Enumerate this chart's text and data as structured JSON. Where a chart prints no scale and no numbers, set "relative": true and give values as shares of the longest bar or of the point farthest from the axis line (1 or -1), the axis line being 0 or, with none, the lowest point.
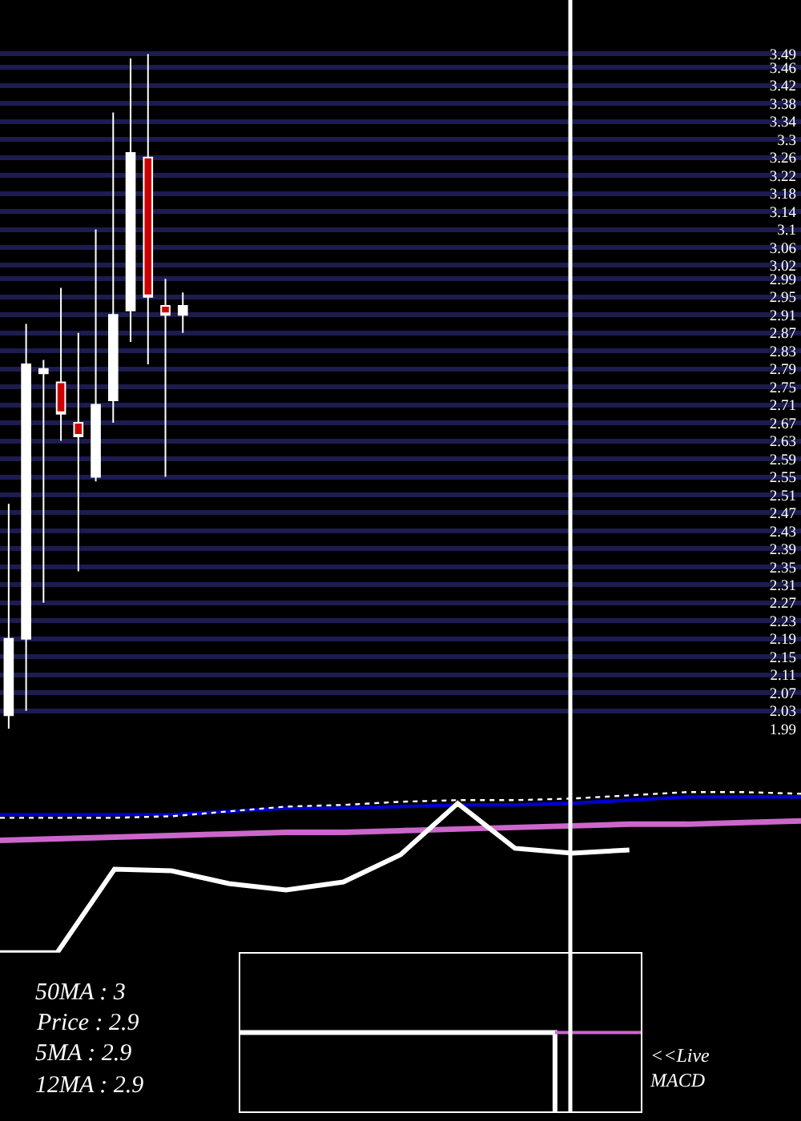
{
  "chart_data": [
    {
      "type": "candlestick",
      "categories": [
        null,
        null,
        null,
        null,
        null,
        null,
        null,
        null,
        null,
        null,
        null,
        null,
        null,
        null,
        null,
        null,
        null,
        null,
        null,
        null,
        null,
        null,
        null,
        null,
        null,
        null,
        null,
        null,
        null,
        null,
        null,
        null,
        null,
        null,
        null,
        null,
        null,
        null,
        null,
        null,
        null,
        null,
        null,
        null,
        null,
        null
      ],
      "ohlc": [
        [
          2.02,
          2.49,
          1.99,
          2.19
        ],
        [
          2.19,
          2.89,
          2.03,
          2.8
        ],
        [
          2.78,
          2.81,
          2.27,
          2.79
        ],
        [
          2.76,
          2.97,
          2.63,
          2.69
        ],
        [
          2.67,
          2.87,
          2.34,
          2.64
        ],
        [
          2.55,
          3.1,
          2.54,
          2.71
        ],
        [
          2.72,
          3.36,
          2.67,
          2.91
        ],
        [
          2.92,
          3.48,
          2.85,
          3.27
        ],
        [
          3.26,
          3.49,
          2.8,
          2.95
        ],
        [
          2.93,
          2.99,
          2.55,
          2.91
        ],
        [
          2.91,
          2.96,
          2.87,
          2.93
        ],
        null,
        null,
        null,
        null,
        null,
        null,
        null,
        null,
        null,
        null,
        null,
        null,
        null,
        null,
        null,
        null,
        null,
        null,
        null,
        null,
        null,
        null,
        null,
        null,
        null,
        null,
        null,
        null,
        null,
        null,
        null,
        null,
        null,
        null,
        null
      ],
      "colors": [
        "#ffffff",
        "#ffffff",
        "#ffffff",
        "#cc0000",
        "#cc0000",
        "#ffffff",
        "#ffffff",
        "#ffffff",
        "#cc0000",
        "#cc0000",
        "#ffffff",
        null,
        null,
        null,
        null,
        null,
        null,
        null,
        null,
        null,
        null,
        null,
        null,
        null,
        null,
        null,
        null,
        null,
        null,
        null,
        null,
        null,
        null,
        null,
        null,
        null,
        null,
        null,
        null,
        null,
        null,
        null,
        null,
        null,
        null,
        null
      ],
      "ylim": [
        1.99,
        3.61
      ],
      "yticks": [
        3.49,
        3.46,
        3.42,
        3.38,
        3.34,
        3.3,
        3.26,
        3.22,
        3.18,
        3.14,
        3.1,
        3.06,
        3.02,
        2.99,
        2.95,
        2.91,
        2.87,
        2.83,
        2.79,
        2.75,
        2.71,
        2.67,
        2.63,
        2.59,
        2.55,
        2.51,
        2.47,
        2.43,
        2.39,
        2.35,
        2.31,
        2.27,
        2.23,
        2.19,
        2.15,
        2.11,
        2.07,
        2.03,
        1.99
      ],
      "grid": "y",
      "tick_labels": "y"
    },
    {
      "type": "line",
      "relative": true,
      "tick_labels": false,
      "categories": [
        null,
        null,
        null,
        null,
        null,
        null,
        null,
        null,
        null,
        null,
        null,
        null,
        null,
        null,
        null
      ],
      "series": [
        {
          "color": "#0000cc",
          "values": [
            0.86,
            0.86,
            0.86,
            0.86,
            0.88,
            0.9,
            0.9,
            0.91,
            0.92,
            0.92,
            0.93,
            0.95,
            0.97,
            0.97,
            0.97
          ]
        },
        {
          "color": "#ffffff",
          "line_style": "dotted",
          "values": [
            0.84,
            0.84,
            0.84,
            0.85,
            0.88,
            0.91,
            0.92,
            0.94,
            0.95,
            0.95,
            0.96,
            0.98,
            1,
            1,
            0.99
          ]
        },
        {
          "color": "#cc66cc",
          "values": [
            0.7,
            0.71,
            0.72,
            0.73,
            0.74,
            0.75,
            0.75,
            0.76,
            0.77,
            0.78,
            0.79,
            0.8,
            0.8,
            0.81,
            0.82
          ]
        },
        {
          "color": "#ffffff",
          "values": [
            0,
            0,
            0.52,
            0.51,
            0.43,
            0.39,
            0.44,
            0.61,
            0.93,
            0.65,
            0.62,
            0.64,
            null,
            null,
            null
          ]
        }
      ],
      "annotations": [
        "50MA : 3",
        "Price : 2.9",
        "5MA : 2.9",
        "12MA : 2.9"
      ]
    },
    {
      "type": "step",
      "relative": true,
      "tick_labels": false,
      "categories": [
        null,
        null,
        null,
        null,
        null,
        null,
        null,
        null,
        null,
        null,
        null,
        null,
        null,
        null,
        null
      ],
      "series": [
        {
          "color": "#ffffff",
          "values": [
            1,
            1,
            1,
            1,
            1,
            1,
            1,
            1,
            1,
            1,
            1,
            0,
            null,
            null,
            null
          ]
        },
        {
          "color": "#cc66cc",
          "values": [
            null,
            null,
            null,
            null,
            null,
            null,
            null,
            null,
            null,
            null,
            null,
            1,
            1,
            1,
            1
          ]
        }
      ],
      "annotations": [
        "<<Live\nMACD"
      ]
    }
  ]
}
